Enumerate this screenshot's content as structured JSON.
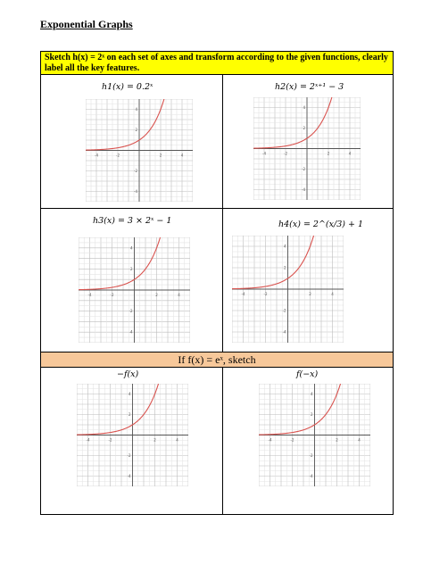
{
  "title": "Exponential Graphs",
  "instruction": "Sketch h(x) = 2ˣ on each set of axes and transform according to the given functions, clearly label all the key features.",
  "section2_heading": "If f(x) = eˣ, sketch",
  "cells": [
    {
      "label": "h1(x) = 0.2ˣ"
    },
    {
      "label": "h2(x) = 2ˣ⁺¹ − 3"
    },
    {
      "label": "h3(x) = 3 × 2ˣ − 1"
    },
    {
      "label": "h4(x) = 2^(x/3) + 1"
    },
    {
      "label": "−f(x)"
    },
    {
      "label": "f(−x)"
    }
  ],
  "grid": {
    "x_ticks": [
      "-4",
      "-2",
      "2",
      "4"
    ],
    "y_ticks": [
      "4",
      "2",
      "-2",
      "-4"
    ]
  },
  "curve_color": "#d9534f"
}
